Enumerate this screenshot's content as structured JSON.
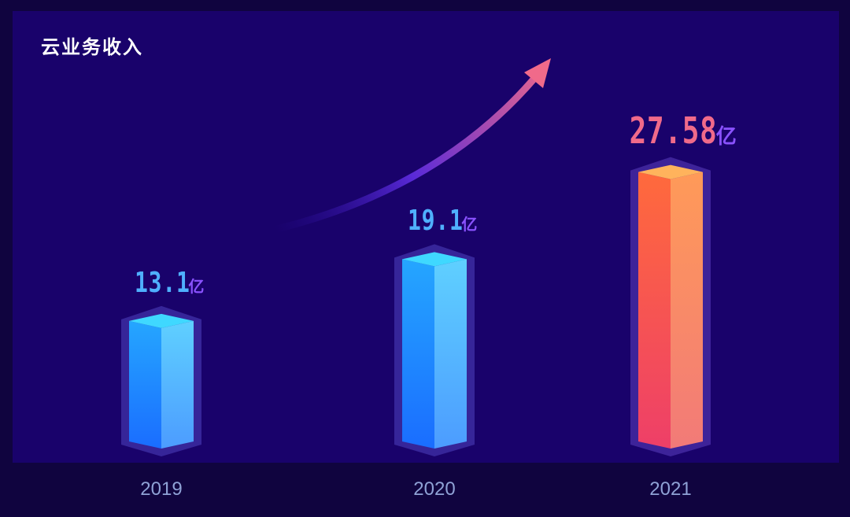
{
  "chart_data": {
    "type": "bar",
    "title": "云业务收入",
    "categories": [
      "2019",
      "2020",
      "2021"
    ],
    "values": [
      13.1,
      19.1,
      27.58
    ],
    "value_labels": [
      "13.1",
      "19.1",
      "27.58"
    ],
    "unit": "亿",
    "ylim": [
      0,
      30
    ],
    "grid": false,
    "legend": "none"
  },
  "colors": {
    "background": "#10043f",
    "panel": "#19026b",
    "blue_top": "#3fd8ff",
    "blue_left": "#1c7dff",
    "blue_right": "#55b8ff",
    "orange_top": "#ffb35c",
    "orange_left": "#ff5a44",
    "orange_right": "#ff8a5a",
    "value_blue": "#4fb0ff",
    "value_purple": "#8a52ff",
    "value_pink": "#f06a8a",
    "year_label": "#8fa2d6"
  },
  "icons": {
    "trend": "upward-trend-arrow-icon"
  }
}
